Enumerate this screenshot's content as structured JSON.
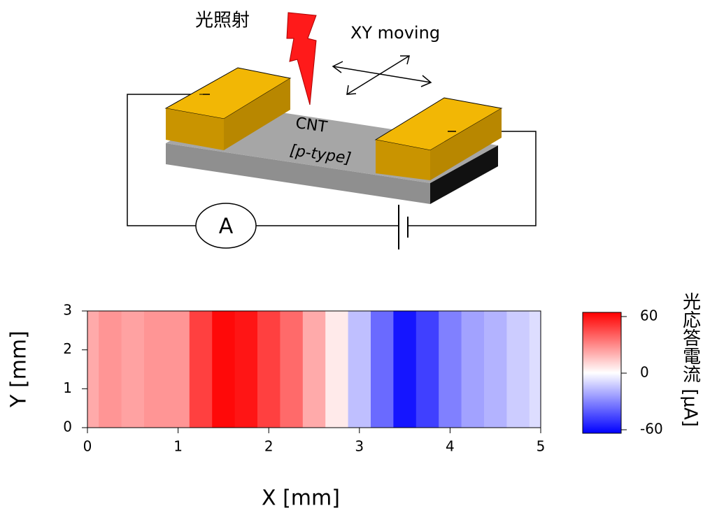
{
  "diagram": {
    "light_label": "光照射",
    "motion_label": "XY moving",
    "cnt_label": "CNT",
    "type_label": "[p-type]",
    "ammeter_label": "A"
  },
  "chart_data": {
    "type": "heatmap",
    "xlabel": "X [mm]",
    "ylabel": "Y [mm]",
    "x": [
      0,
      0.25,
      0.5,
      0.75,
      1,
      1.25,
      1.5,
      1.75,
      2,
      2.25,
      2.5,
      2.75,
      3,
      3.25,
      3.5,
      3.75,
      4,
      4.25,
      4.5,
      4.75,
      5
    ],
    "values": [
      20,
      25,
      22,
      25,
      25,
      45,
      58,
      55,
      45,
      35,
      20,
      5,
      -15,
      -35,
      -55,
      -45,
      -30,
      -22,
      -18,
      -12,
      -8
    ],
    "xlim": [
      0,
      5
    ],
    "ylim": [
      0,
      3
    ],
    "xticks": [
      0,
      1,
      2,
      3,
      4,
      5
    ],
    "yticks": [
      0,
      1,
      2,
      3
    ],
    "colorbar": {
      "label": "光応答電流 [μA]",
      "lim": [
        -60,
        60
      ],
      "ticks": [
        60,
        0,
        -60
      ],
      "colors": [
        "#0000ff",
        "#ffffff",
        "#ff0000"
      ]
    }
  }
}
